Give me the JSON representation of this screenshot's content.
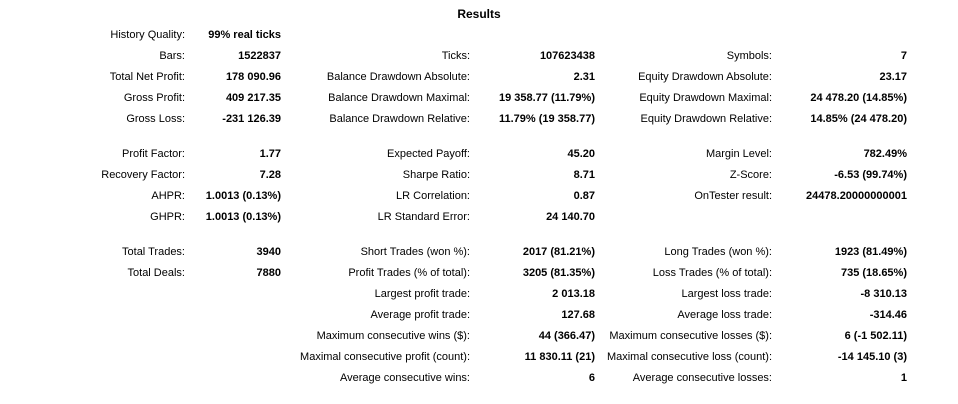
{
  "title": "Results",
  "rows": [
    [
      "History Quality:",
      "99% real ticks",
      "",
      "",
      "",
      ""
    ],
    [
      "Bars:",
      "1522837",
      "Ticks:",
      "107623438",
      "Symbols:",
      "7"
    ],
    [
      "Total Net Profit:",
      "178 090.96",
      "Balance Drawdown Absolute:",
      "2.31",
      "Equity Drawdown Absolute:",
      "23.17"
    ],
    [
      "Gross Profit:",
      "409 217.35",
      "Balance Drawdown Maximal:",
      "19 358.77 (11.79%)",
      "Equity Drawdown Maximal:",
      "24 478.20 (14.85%)"
    ],
    [
      "Gross Loss:",
      "-231 126.39",
      "Balance Drawdown Relative:",
      "11.79% (19 358.77)",
      "Equity Drawdown Relative:",
      "14.85% (24 478.20)"
    ],
    null,
    [
      "Profit Factor:",
      "1.77",
      "Expected Payoff:",
      "45.20",
      "Margin Level:",
      "782.49%"
    ],
    [
      "Recovery Factor:",
      "7.28",
      "Sharpe Ratio:",
      "8.71",
      "Z-Score:",
      "-6.53 (99.74%)"
    ],
    [
      "AHPR:",
      "1.0013 (0.13%)",
      "LR Correlation:",
      "0.87",
      "OnTester result:",
      "24478.20000000001"
    ],
    [
      "GHPR:",
      "1.0013 (0.13%)",
      "LR Standard Error:",
      "24 140.70",
      "",
      ""
    ],
    null,
    [
      "Total Trades:",
      "3940",
      "Short Trades (won %):",
      "2017 (81.21%)",
      "Long Trades (won %):",
      "1923 (81.49%)"
    ],
    [
      "Total Deals:",
      "7880",
      "Profit Trades (% of total):",
      "3205 (81.35%)",
      "Loss Trades (% of total):",
      "735 (18.65%)"
    ],
    [
      "",
      "",
      "Largest profit trade:",
      "2 013.18",
      "Largest loss trade:",
      "-8 310.13"
    ],
    [
      "",
      "",
      "Average profit trade:",
      "127.68",
      "Average loss trade:",
      "-314.46"
    ],
    [
      "",
      "",
      "Maximum consecutive wins ($):",
      "44 (366.47)",
      "Maximum consecutive losses ($):",
      "6 (-1 502.11)"
    ],
    [
      "",
      "",
      "Maximal consecutive profit (count):",
      "11 830.11 (21)",
      "Maximal consecutive loss (count):",
      "-14 145.10 (3)"
    ],
    [
      "",
      "",
      "Average consecutive wins:",
      "6",
      "Average consecutive losses:",
      "1"
    ]
  ]
}
